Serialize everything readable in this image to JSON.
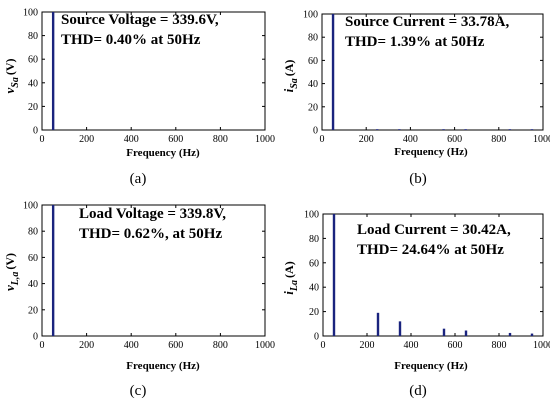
{
  "chart_data": [
    {
      "type": "bar",
      "panel": "a",
      "caption": "(a)",
      "ylabel": {
        "main": "v",
        "sub": "Sa",
        "unit": "(V)"
      },
      "xlabel": "Frequency (Hz)",
      "xlim": [
        0,
        1000
      ],
      "ylim": [
        0,
        100
      ],
      "xticks": [
        0,
        200,
        400,
        600,
        800,
        1000
      ],
      "yticks": [
        0,
        20,
        40,
        60,
        80,
        100
      ],
      "annotation": [
        "Source Voltage = 339.6V,",
        "THD= 0.40% at 50Hz"
      ],
      "x": [
        50
      ],
      "values": [
        100
      ]
    },
    {
      "type": "bar",
      "panel": "b",
      "caption": "(b)",
      "ylabel": {
        "main": "i",
        "sub": "Sa",
        "unit": "(A)"
      },
      "xlabel": "Frequency (Hz)",
      "xlim": [
        0,
        1000
      ],
      "ylim": [
        0,
        100
      ],
      "xticks": [
        0,
        200,
        400,
        600,
        800,
        1000
      ],
      "yticks": [
        0,
        20,
        40,
        60,
        80,
        100
      ],
      "annotation": [
        "Source Current = 33.78A,",
        "THD= 1.39% at 50Hz"
      ],
      "x": [
        50,
        250,
        350,
        550,
        650,
        850,
        950
      ],
      "values": [
        100,
        0.5,
        0.5,
        0.4,
        0.4,
        0.3,
        0.3
      ]
    },
    {
      "type": "bar",
      "panel": "c",
      "caption": "(c)",
      "ylabel": {
        "main": "v",
        "sub": "L,a",
        "unit": "(V)"
      },
      "xlabel": "Frequency (Hz)",
      "xlim": [
        0,
        1000
      ],
      "ylim": [
        0,
        100
      ],
      "xticks": [
        0,
        200,
        400,
        600,
        800,
        1000
      ],
      "yticks": [
        0,
        20,
        40,
        60,
        80,
        100
      ],
      "annotation": [
        "Load Voltage = 339.8V,",
        "THD= 0.62%, at 50Hz"
      ],
      "x": [
        50
      ],
      "values": [
        100
      ]
    },
    {
      "type": "bar",
      "panel": "d",
      "caption": "(d)",
      "ylabel": {
        "main": "i",
        "sub": "La",
        "unit": "(A)"
      },
      "xlabel": "Frequency (Hz)",
      "xlim": [
        0,
        1000
      ],
      "ylim": [
        0,
        100
      ],
      "xticks": [
        0,
        200,
        400,
        600,
        800,
        1000
      ],
      "yticks": [
        0,
        20,
        40,
        60,
        80,
        100
      ],
      "annotation": [
        "Load Current = 30.42A,",
        "THD= 24.64% at 50Hz"
      ],
      "x": [
        50,
        250,
        350,
        550,
        650,
        850,
        950
      ],
      "values": [
        100,
        19,
        12,
        6,
        4.5,
        2.5,
        2
      ]
    }
  ],
  "colors": {
    "bar": "#1a237e",
    "axis": "#000000"
  }
}
